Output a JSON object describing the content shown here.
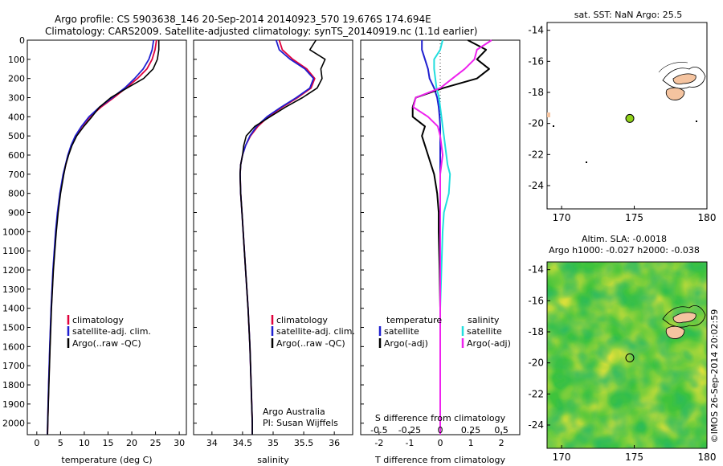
{
  "header": {
    "line1": "Argo profile: CS 5903638_146 20-Sep-2014 20140923_570 19.676S 174.694E",
    "line2": "Climatology: CARS2009. Satellite-adjusted climatology: synTS_20140919.nc (1.1d earlier)"
  },
  "colors": {
    "clim": "#e0003c",
    "sat": "#1f1fd0",
    "argo": "#000000",
    "sat_s": "#22dede",
    "argo_s": "#ee22ee",
    "marker": "#8fd11a",
    "land": "#f5c4a0"
  },
  "chart_data": [
    {
      "type": "line",
      "name": "temperature",
      "xlabel": "temperature (deg C)",
      "ylabel": "",
      "xlim": [
        -2,
        31.5
      ],
      "ylim": [
        2060,
        0
      ],
      "x_ticks": [
        "0",
        "5",
        "10",
        "15",
        "20",
        "25",
        "30"
      ],
      "y_ticks": [
        "0",
        "100",
        "200",
        "300",
        "400",
        "500",
        "600",
        "700",
        "800",
        "900",
        "1000",
        "1100",
        "1200",
        "1300",
        "1400",
        "1500",
        "1600",
        "1700",
        "1800",
        "1900",
        "2000"
      ],
      "legend": [
        "climatology",
        "satellite-adj. clim.",
        "Argo(..raw -QC)"
      ],
      "depths": [
        0,
        50,
        100,
        150,
        200,
        250,
        300,
        350,
        400,
        450,
        500,
        550,
        600,
        650,
        700,
        800,
        900,
        1000,
        1200,
        1400,
        1600,
        1800,
        2000,
        2060
      ],
      "series": [
        {
          "name": "climatology",
          "values": [
            25.2,
            24.9,
            24.3,
            23.2,
            21.2,
            18.8,
            16.2,
            13.5,
            11.2,
            9.5,
            8.2,
            7.3,
            6.6,
            6.1,
            5.6,
            4.9,
            4.4,
            4.0,
            3.45,
            3.05,
            2.75,
            2.5,
            2.3,
            2.25
          ]
        },
        {
          "name": "satellite-adj. clim.",
          "values": [
            24.6,
            24.3,
            23.6,
            22.4,
            20.6,
            18.5,
            15.9,
            13.2,
            11.0,
            9.4,
            8.1,
            7.2,
            6.55,
            6.05,
            5.55,
            4.85,
            4.35,
            3.95,
            3.4,
            3.0,
            2.72,
            2.48,
            2.28,
            2.23
          ]
        },
        {
          "name": "Argo(..raw -QC)",
          "values": [
            25.7,
            25.7,
            25.4,
            24.5,
            22.5,
            19.0,
            15.6,
            13.2,
            11.6,
            9.9,
            8.4,
            7.4,
            6.7,
            6.1,
            5.7,
            5.0,
            4.5,
            4.1,
            3.5,
            3.1,
            2.8,
            2.55,
            2.32,
            2.27
          ]
        }
      ]
    },
    {
      "type": "line",
      "name": "salinity",
      "xlabel": "salinity",
      "xlim": [
        33.7,
        36.3
      ],
      "ylim": [
        2060,
        0
      ],
      "x_ticks": [
        "34",
        "34.5",
        "35",
        "35.5",
        "36"
      ],
      "legend": [
        "climatology",
        "satellite-adj. clim.",
        "Argo(..raw -QC)"
      ],
      "annotation": [
        "Argo Australia",
        "PI: Susan Wijffels"
      ],
      "depths": [
        0,
        50,
        100,
        150,
        200,
        250,
        300,
        350,
        400,
        450,
        500,
        550,
        600,
        650,
        700,
        800,
        900,
        1000,
        1200,
        1400,
        1600,
        1800,
        2000,
        2060
      ],
      "series": [
        {
          "name": "climatology",
          "values": [
            35.1,
            35.15,
            35.32,
            35.55,
            35.68,
            35.62,
            35.4,
            35.15,
            34.92,
            34.75,
            34.63,
            34.55,
            34.5,
            34.47,
            34.46,
            34.47,
            34.49,
            34.51,
            34.55,
            34.59,
            34.62,
            34.64,
            34.66,
            34.66
          ]
        },
        {
          "name": "satellite-adj. clim.",
          "values": [
            35.05,
            35.1,
            35.28,
            35.52,
            35.66,
            35.6,
            35.38,
            35.13,
            34.9,
            34.73,
            34.62,
            34.55,
            34.5,
            34.47,
            34.46,
            34.47,
            34.49,
            34.51,
            34.55,
            34.59,
            34.62,
            34.64,
            34.66,
            34.66
          ]
        },
        {
          "name": "Argo(..raw -QC)",
          "values": [
            35.7,
            35.6,
            35.85,
            35.78,
            35.8,
            35.72,
            35.48,
            35.2,
            34.95,
            34.7,
            34.56,
            34.52,
            34.5,
            34.47,
            34.46,
            34.47,
            34.49,
            34.51,
            34.55,
            34.59,
            34.62,
            34.64,
            34.66,
            34.66
          ]
        }
      ]
    },
    {
      "type": "line",
      "name": "differences",
      "xlabel": "T difference from climatology",
      "top_label": "S difference from climatology",
      "xlim": [
        -2.6,
        2.6
      ],
      "ylim": [
        2060,
        0
      ],
      "x_ticks": [
        "-2",
        "-1",
        "0",
        "1",
        "2"
      ],
      "top_ticks": [
        "-0.5",
        "-0.25",
        "0",
        "0.25",
        "0.5"
      ],
      "legend_t_title": "temperature",
      "legend_s_title": "salinity",
      "legend_t": [
        "satellite",
        "Argo(-adj)"
      ],
      "legend_s": [
        "satellite",
        "Argo(-adj)"
      ],
      "depths": [
        0,
        50,
        100,
        150,
        200,
        250,
        300,
        350,
        400,
        450,
        500,
        550,
        600,
        650,
        700,
        800,
        900,
        1000,
        1200,
        1400,
        1600,
        1800,
        2000,
        2060
      ],
      "series": [
        {
          "name": "T satellite",
          "values": [
            -0.6,
            -0.6,
            -0.5,
            -0.4,
            -0.35,
            -0.2,
            -0.1,
            -0.05,
            -0.02,
            0,
            0,
            0,
            0,
            0,
            0,
            0,
            0,
            0,
            0,
            0,
            0,
            0,
            0,
            0
          ]
        },
        {
          "name": "T Argo(-adj)",
          "values": [
            0.9,
            1.5,
            1.2,
            1.6,
            1.2,
            0.1,
            -0.8,
            -0.9,
            -0.9,
            -0.5,
            -0.6,
            -0.5,
            -0.4,
            -0.3,
            -0.2,
            -0.1,
            -0.05,
            -0.05,
            -0.02,
            0,
            0,
            0,
            0,
            0
          ]
        },
        {
          "name": "S satellite",
          "values": [
            0.02,
            0.0,
            -0.05,
            -0.05,
            -0.04,
            -0.03,
            -0.01,
            0,
            0.01,
            0.02,
            0.03,
            0.04,
            0.05,
            0.06,
            0.08,
            0.07,
            0.03,
            0.02,
            0.01,
            0,
            0,
            0,
            0,
            0
          ]
        },
        {
          "name": "S Argo(-adj)",
          "values": [
            0.42,
            0.3,
            0.28,
            0.2,
            0.1,
            0.0,
            -0.2,
            -0.22,
            -0.1,
            -0.02,
            0,
            0.01,
            0.02,
            0.01,
            0,
            0,
            0,
            0,
            0,
            0,
            0,
            0,
            0,
            0
          ]
        }
      ]
    },
    {
      "type": "scatter",
      "name": "map-sst",
      "title": "sat. SST: NaN Argo: 25.5",
      "xlim": [
        169,
        180
      ],
      "ylim": [
        -25.5,
        -13.5
      ],
      "x_ticks": [
        "170",
        "175",
        "180"
      ],
      "y_ticks": [
        "-14",
        "-16",
        "-18",
        "-20",
        "-22",
        "-24"
      ],
      "argo_position": {
        "lon": 174.694,
        "lat": -19.676
      }
    },
    {
      "type": "heatmap",
      "name": "map-sla",
      "title1": "Altim. SLA: -0.0018",
      "title2": "Argo h1000: -0.027 h2000: -0.038",
      "xlim": [
        169,
        180
      ],
      "ylim": [
        -25.5,
        -13.5
      ],
      "x_ticks": [
        "170",
        "175",
        "180"
      ],
      "y_ticks": [
        "-14",
        "-16",
        "-18",
        "-20",
        "-22",
        "-24"
      ],
      "argo_position": {
        "lon": 174.694,
        "lat": -19.676
      }
    }
  ],
  "side_label": "©IMOS 26-Sep-2014 20:02:59"
}
